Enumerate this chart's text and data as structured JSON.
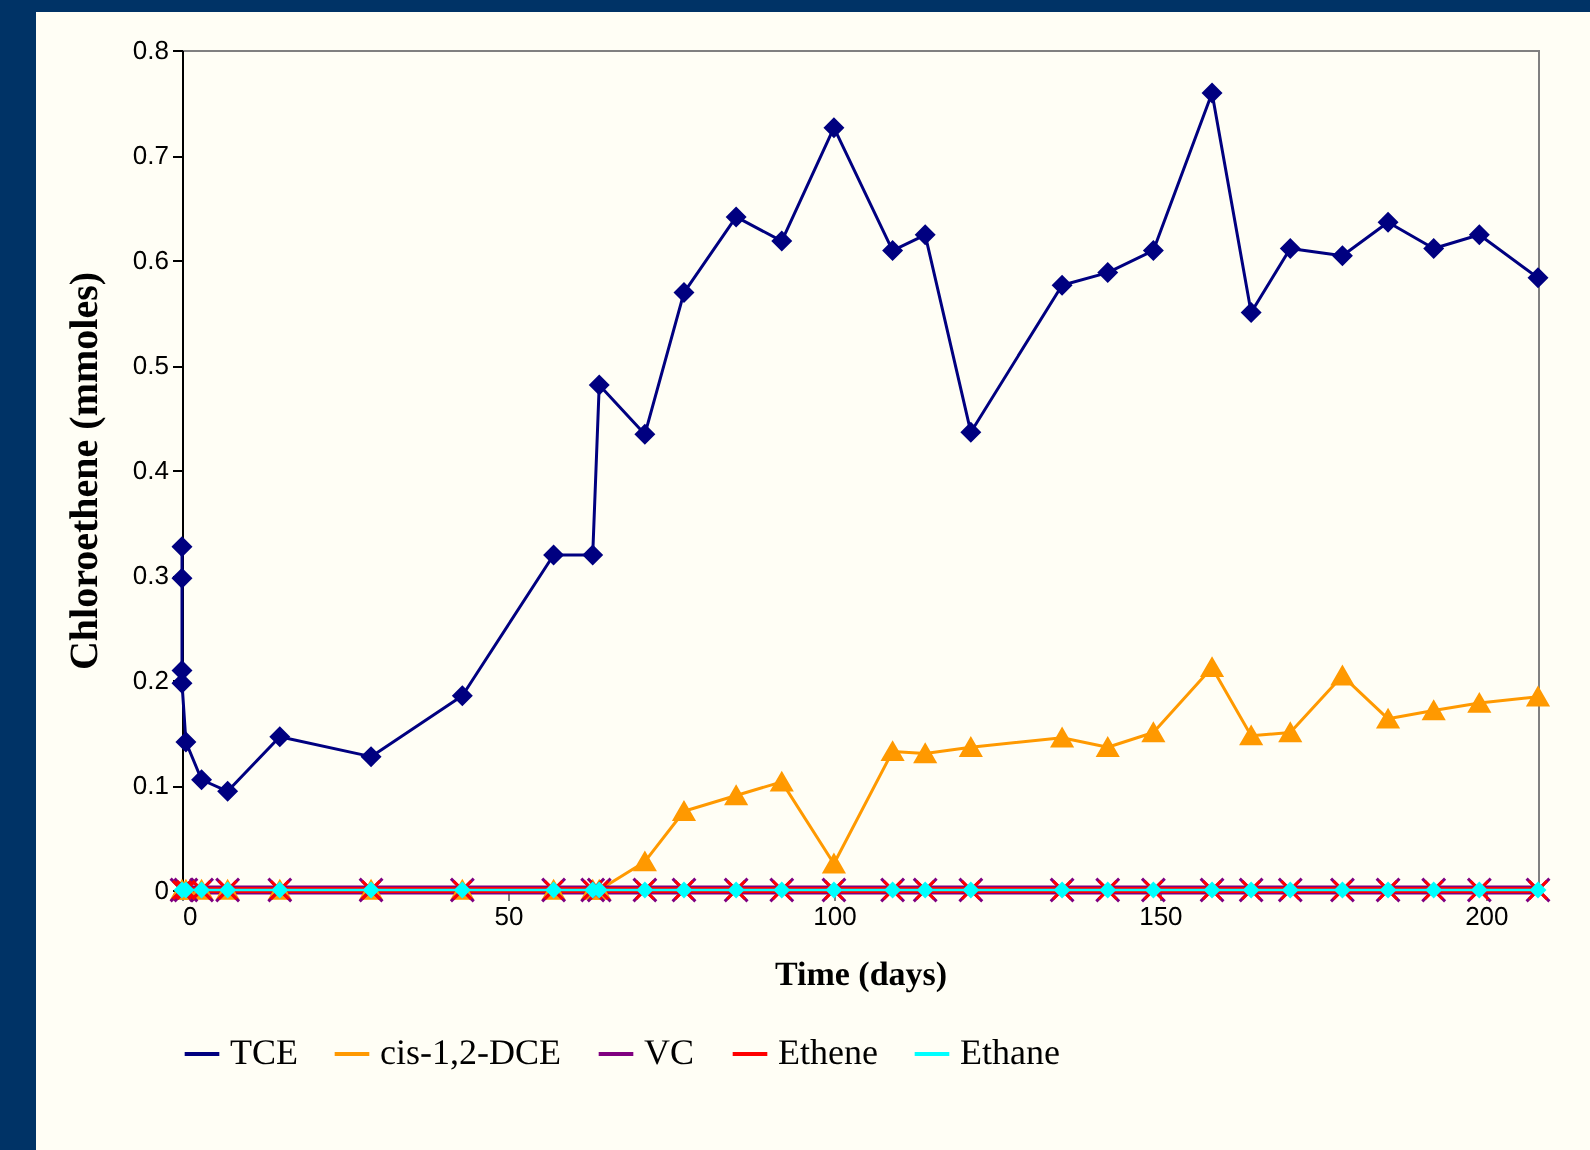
{
  "chart_data": {
    "type": "line",
    "xlabel": "Time (days)",
    "ylabel": "Chloroethene (mmoles)",
    "x": [
      0,
      0,
      0,
      0,
      0.6,
      3,
      7,
      15,
      29,
      43,
      57,
      63,
      64,
      71,
      77,
      85,
      92,
      100,
      109,
      114,
      121,
      135,
      142,
      149,
      158,
      164,
      170,
      178,
      185,
      192,
      199,
      208
    ],
    "series": [
      {
        "name": "TCE",
        "color": "#000080",
        "marker": "diamond",
        "values": [
          0.327,
          0.297,
          0.209,
          0.197,
          0.141,
          0.105,
          0.094,
          0.146,
          0.127,
          0.185,
          0.319,
          0.319,
          0.481,
          0.434,
          0.569,
          0.641,
          0.618,
          0.726,
          0.609,
          0.624,
          0.436,
          0.576,
          0.588,
          0.609,
          0.759,
          0.55,
          0.611,
          0.604,
          0.636,
          0.611,
          0.624,
          0.583
        ]
      },
      {
        "name": "cis-1,2-DCE",
        "color": "#ff9900",
        "marker": "triangle",
        "x": [
          0,
          0.6,
          3,
          7,
          15,
          29,
          43,
          57,
          63,
          64,
          71,
          77,
          85,
          92,
          100,
          109,
          114,
          121,
          135,
          142,
          149,
          158,
          164,
          170,
          178,
          185,
          192,
          199,
          208
        ],
        "values": [
          0,
          0,
          0,
          0,
          0,
          0,
          0,
          0,
          0,
          0,
          0.027,
          0.075,
          0.09,
          0.103,
          0.025,
          0.132,
          0.13,
          0.136,
          0.145,
          0.136,
          0.15,
          0.212,
          0.147,
          0.15,
          0.204,
          0.163,
          0.171,
          0.178,
          0.184
        ]
      },
      {
        "name": "VC",
        "color": "#800080",
        "marker": "cross",
        "x": [
          0,
          0.6,
          3,
          7,
          15,
          29,
          43,
          57,
          63,
          64,
          71,
          77,
          85,
          92,
          100,
          109,
          114,
          121,
          135,
          142,
          149,
          158,
          164,
          170,
          178,
          185,
          192,
          199,
          208
        ],
        "values": [
          0,
          0,
          0,
          0,
          0,
          0,
          0,
          0,
          0,
          0,
          0,
          0,
          0,
          0,
          0,
          0,
          0,
          0,
          0,
          0,
          0,
          0,
          0,
          0,
          0,
          0,
          0,
          0,
          0
        ]
      },
      {
        "name": "Ethene",
        "color": "#ff0000",
        "marker": "cross",
        "x": [
          0,
          0.6,
          3,
          7,
          15,
          29,
          43,
          57,
          63,
          64,
          71,
          77,
          85,
          92,
          100,
          109,
          114,
          121,
          135,
          142,
          149,
          158,
          164,
          170,
          178,
          185,
          192,
          199,
          208
        ],
        "values": [
          0,
          0,
          0,
          0,
          0,
          0,
          0,
          0,
          0,
          0,
          0,
          0,
          0,
          0,
          0,
          0,
          0,
          0,
          0,
          0,
          0,
          0,
          0,
          0,
          0,
          0,
          0,
          0,
          0
        ]
      },
      {
        "name": "Ethane",
        "color": "#00ffff",
        "marker": "diamond",
        "x": [
          0,
          0.6,
          3,
          7,
          15,
          29,
          43,
          57,
          63,
          64,
          71,
          77,
          85,
          92,
          100,
          109,
          114,
          121,
          135,
          142,
          149,
          158,
          164,
          170,
          178,
          185,
          192,
          199,
          208
        ],
        "values": [
          0,
          0,
          0,
          0,
          0,
          0,
          0,
          0,
          0,
          0,
          0,
          0,
          0,
          0,
          0,
          0,
          0,
          0,
          0,
          0,
          0,
          0,
          0,
          0,
          0,
          0,
          0,
          0,
          0
        ]
      }
    ],
    "xlim": [
      0,
      208
    ],
    "xticks": [
      0,
      50,
      100,
      150,
      200
    ],
    "ylim": [
      0,
      0.8
    ],
    "yticks": [
      {
        "value": 0,
        "label": "0"
      },
      0.1,
      0.2,
      0.3,
      0.4,
      0.5,
      0.6,
      0.7,
      0.8
    ],
    "grid": false,
    "legend": "bottom"
  }
}
